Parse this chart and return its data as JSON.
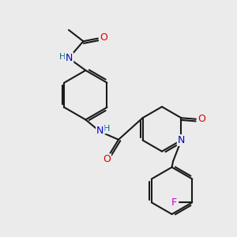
{
  "background_color": "#ebebeb",
  "bond_color": "#1a1a1a",
  "bond_width": 1.5,
  "atom_colors": {
    "O": "#dd0000",
    "N": "#0000cc",
    "H": "#007070",
    "F": "#cc00cc",
    "C": "#1a1a1a"
  },
  "figsize": [
    3.0,
    3.0
  ],
  "dpi": 100
}
